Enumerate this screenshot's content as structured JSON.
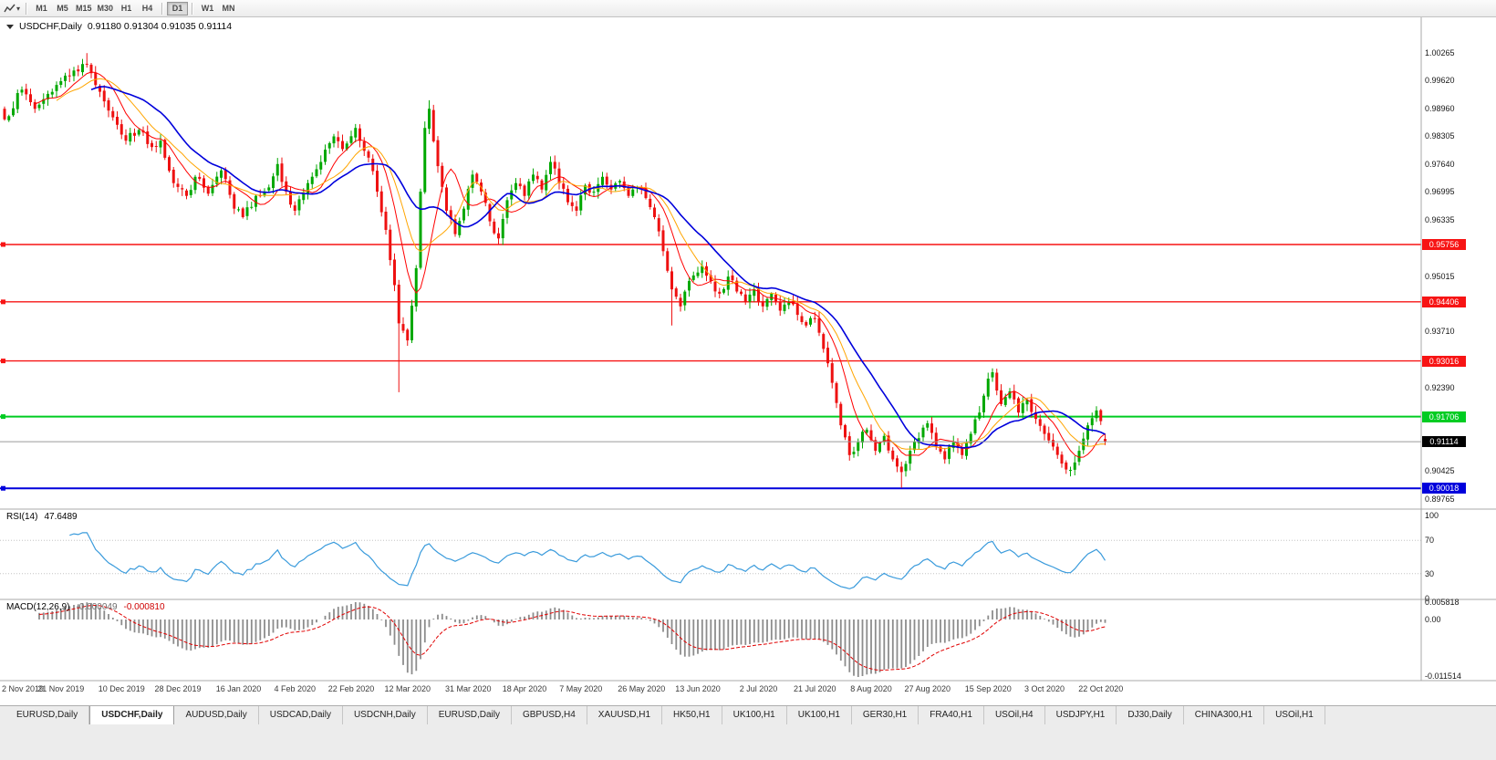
{
  "toolbar": {
    "timeframes": [
      "M1",
      "M5",
      "M15",
      "M30",
      "H1",
      "H4",
      "D1",
      "W1",
      "MN"
    ],
    "active_timeframe": "D1"
  },
  "chart": {
    "title_symbol": "USDCHF,Daily",
    "title_ohlc": "0.91180 0.91304 0.91035 0.91114",
    "open": "0.91180",
    "high": "0.91304",
    "low": "0.91035",
    "close": "0.91114"
  },
  "price_axis": {
    "ticks": [
      {
        "label": "1.00265",
        "value": 1.00265
      },
      {
        "label": "0.99620",
        "value": 0.9962
      },
      {
        "label": "0.98960",
        "value": 0.9896
      },
      {
        "label": "0.98305",
        "value": 0.98305
      },
      {
        "label": "0.97640",
        "value": 0.9764
      },
      {
        "label": "0.96995",
        "value": 0.96995
      },
      {
        "label": "0.96335",
        "value": 0.96335
      },
      {
        "label": "0.95015",
        "value": 0.95015
      },
      {
        "label": "0.93710",
        "value": 0.9371
      },
      {
        "label": "0.92390",
        "value": 0.9239
      },
      {
        "label": "0.90425",
        "value": 0.90425
      },
      {
        "label": "0.89765",
        "value": 0.89765
      }
    ]
  },
  "hlines": [
    {
      "label": "0.95756",
      "value": 0.95756,
      "color": "#f71414",
      "width": 1.4
    },
    {
      "label": "0.94406",
      "value": 0.94406,
      "color": "#f71414",
      "width": 1.4
    },
    {
      "label": "0.93016",
      "value": 0.93016,
      "color": "#f71414",
      "width": 1.4
    },
    {
      "label": "0.91706",
      "value": 0.91706,
      "color": "#00cc22",
      "width": 2
    },
    {
      "label": "0.90018",
      "value": 0.90018,
      "color": "#0000dc",
      "width": 2
    }
  ],
  "bid": {
    "label": "0.91114",
    "value": 0.91114,
    "color": "#000000"
  },
  "rsi": {
    "name": "RSI(14)",
    "value": "47.6489",
    "levels": [
      {
        "label": "100",
        "value": 100
      },
      {
        "label": "70",
        "value": 70
      },
      {
        "label": "30",
        "value": 30
      },
      {
        "label": "0",
        "value": 0
      }
    ]
  },
  "macd": {
    "name": "MACD(12,26,9)",
    "main_value": "-0.000049",
    "signal_value": "-0.000810",
    "levels": [
      {
        "label": "0.005818"
      },
      {
        "label": "0.00"
      },
      {
        "label": "-0.011514"
      }
    ]
  },
  "date_axis": [
    {
      "label": "2 Nov 2019",
      "bar": 0
    },
    {
      "label": "21 Nov 2019",
      "bar": 13
    },
    {
      "label": "10 Dec 2019",
      "bar": 27
    },
    {
      "label": "28 Dec 2019",
      "bar": 40
    },
    {
      "label": "16 Jan 2020",
      "bar": 54
    },
    {
      "label": "4 Feb 2020",
      "bar": 67
    },
    {
      "label": "22 Feb 2020",
      "bar": 80
    },
    {
      "label": "12 Mar 2020",
      "bar": 93
    },
    {
      "label": "31 Mar 2020",
      "bar": 107
    },
    {
      "label": "18 Apr 2020",
      "bar": 120
    },
    {
      "label": "7 May 2020",
      "bar": 133
    },
    {
      "label": "26 May 2020",
      "bar": 147
    },
    {
      "label": "13 Jun 2020",
      "bar": 160
    },
    {
      "label": "2 Jul 2020",
      "bar": 174
    },
    {
      "label": "21 Jul 2020",
      "bar": 187
    },
    {
      "label": "8 Aug 2020",
      "bar": 200
    },
    {
      "label": "27 Aug 2020",
      "bar": 213
    },
    {
      "label": "15 Sep 2020",
      "bar": 227
    },
    {
      "label": "3 Oct 2020",
      "bar": 240
    },
    {
      "label": "22 Oct 2020",
      "bar": 253
    }
  ],
  "tabs": [
    "EURUSD,Daily",
    "USDCHF,Daily",
    "AUDUSD,Daily",
    "USDCAD,Daily",
    "USDCNH,Daily",
    "EURUSD,Daily",
    "GBPUSD,H4",
    "XAUUSD,H1",
    "HK50,H1",
    "UK100,H1",
    "UK100,H1",
    "GER30,H1",
    "FRA40,H1",
    "USOil,H4",
    "USDJPY,H1",
    "DJ30,Daily",
    "CHINA300,H1",
    "USOil,H1"
  ],
  "active_tab_index": 1,
  "chart_data": {
    "type": "candlestick",
    "symbol": "USDCHF",
    "period": "Daily",
    "bars": 255,
    "seed": 7,
    "visible_price_range": [
      0.8955,
      1.0108
    ],
    "colors": {
      "up": "#00a800",
      "down": "#ee1111",
      "rsi": "#3a9bdc",
      "macd_hist": "#8c8c8c",
      "macd_signal": "#e00000"
    },
    "moving_averages": [
      {
        "period": 8,
        "color": "#ff0000",
        "width": 1
      },
      {
        "period": 13,
        "color": "#ffa500",
        "width": 1
      },
      {
        "period": 21,
        "color": "#0000dc",
        "width": 1.6
      }
    ],
    "rsi_period": 14,
    "macd_params": [
      12,
      26,
      9
    ],
    "anchors": [
      [
        0,
        0.987
      ],
      [
        4,
        0.994
      ],
      [
        7,
        0.9895
      ],
      [
        10,
        0.993
      ],
      [
        13,
        0.996
      ],
      [
        16,
        0.9985
      ],
      [
        19,
        1.0
      ],
      [
        22,
        0.9935
      ],
      [
        25,
        0.9875
      ],
      [
        28,
        0.982
      ],
      [
        31,
        0.9845
      ],
      [
        34,
        0.9805
      ],
      [
        36,
        0.982
      ],
      [
        39,
        0.972
      ],
      [
        42,
        0.969
      ],
      [
        44,
        0.9735
      ],
      [
        47,
        0.9695
      ],
      [
        50,
        0.975
      ],
      [
        53,
        0.966
      ],
      [
        55,
        0.964
      ],
      [
        58,
        0.969
      ],
      [
        61,
        0.971
      ],
      [
        63,
        0.9765
      ],
      [
        65,
        0.97
      ],
      [
        67,
        0.9655
      ],
      [
        70,
        0.972
      ],
      [
        73,
        0.977
      ],
      [
        76,
        0.983
      ],
      [
        78,
        0.98
      ],
      [
        81,
        0.985
      ],
      [
        84,
        0.978
      ],
      [
        86,
        0.97
      ],
      [
        88,
        0.961
      ],
      [
        90,
        0.948
      ],
      [
        91,
        0.939
      ],
      [
        93,
        0.935
      ],
      [
        95,
        0.952
      ],
      [
        96,
        0.97
      ],
      [
        97,
        0.985
      ],
      [
        98,
        0.9895
      ],
      [
        100,
        0.976
      ],
      [
        102,
        0.9655
      ],
      [
        104,
        0.96
      ],
      [
        106,
        0.966
      ],
      [
        108,
        0.974
      ],
      [
        110,
        0.97
      ],
      [
        112,
        0.963
      ],
      [
        114,
        0.959
      ],
      [
        116,
        0.968
      ],
      [
        118,
        0.972
      ],
      [
        120,
        0.969
      ],
      [
        122,
        0.974
      ],
      [
        124,
        0.9705
      ],
      [
        126,
        0.977
      ],
      [
        128,
        0.972
      ],
      [
        130,
        0.9675
      ],
      [
        132,
        0.9655
      ],
      [
        134,
        0.9715
      ],
      [
        136,
        0.97
      ],
      [
        138,
        0.9735
      ],
      [
        140,
        0.9705
      ],
      [
        142,
        0.9725
      ],
      [
        144,
        0.969
      ],
      [
        146,
        0.971
      ],
      [
        148,
        0.9685
      ],
      [
        150,
        0.964
      ],
      [
        152,
        0.956
      ],
      [
        154,
        0.947
      ],
      [
        156,
        0.943
      ],
      [
        158,
        0.949
      ],
      [
        161,
        0.9525
      ],
      [
        163,
        0.949
      ],
      [
        165,
        0.946
      ],
      [
        167,
        0.95
      ],
      [
        169,
        0.9465
      ],
      [
        171,
        0.944
      ],
      [
        173,
        0.947
      ],
      [
        175,
        0.943
      ],
      [
        177,
        0.946
      ],
      [
        179,
        0.942
      ],
      [
        181,
        0.944
      ],
      [
        183,
        0.941
      ],
      [
        185,
        0.9385
      ],
      [
        187,
        0.94
      ],
      [
        189,
        0.933
      ],
      [
        191,
        0.925
      ],
      [
        193,
        0.915
      ],
      [
        195,
        0.908
      ],
      [
        197,
        0.911
      ],
      [
        199,
        0.914
      ],
      [
        201,
        0.909
      ],
      [
        203,
        0.9125
      ],
      [
        205,
        0.907
      ],
      [
        207,
        0.904
      ],
      [
        209,
        0.909
      ],
      [
        211,
        0.912
      ],
      [
        213,
        0.9155
      ],
      [
        215,
        0.91
      ],
      [
        217,
        0.907
      ],
      [
        219,
        0.911
      ],
      [
        221,
        0.908
      ],
      [
        223,
        0.913
      ],
      [
        225,
        0.918
      ],
      [
        227,
        0.926
      ],
      [
        228,
        0.9275
      ],
      [
        230,
        0.92
      ],
      [
        232,
        0.923
      ],
      [
        234,
        0.918
      ],
      [
        236,
        0.921
      ],
      [
        238,
        0.9165
      ],
      [
        240,
        0.913
      ],
      [
        242,
        0.91
      ],
      [
        244,
        0.906
      ],
      [
        246,
        0.9045
      ],
      [
        248,
        0.909
      ],
      [
        250,
        0.915
      ],
      [
        252,
        0.9185
      ],
      [
        253,
        0.916
      ],
      [
        254,
        0.91114
      ]
    ],
    "extremes": [
      {
        "bar": 19,
        "high": 1.0026
      },
      {
        "bar": 91,
        "low": 0.9228
      },
      {
        "bar": 98,
        "high": 0.9915
      },
      {
        "bar": 154,
        "low": 0.9385
      },
      {
        "bar": 207,
        "low": 0.9003
      },
      {
        "bar": 246,
        "low": 0.903
      },
      {
        "bar": 252,
        "high": 0.9195
      }
    ],
    "last_candle": {
      "open": 0.9118,
      "high": 0.91304,
      "low": 0.91035,
      "close": 0.91114
    }
  }
}
